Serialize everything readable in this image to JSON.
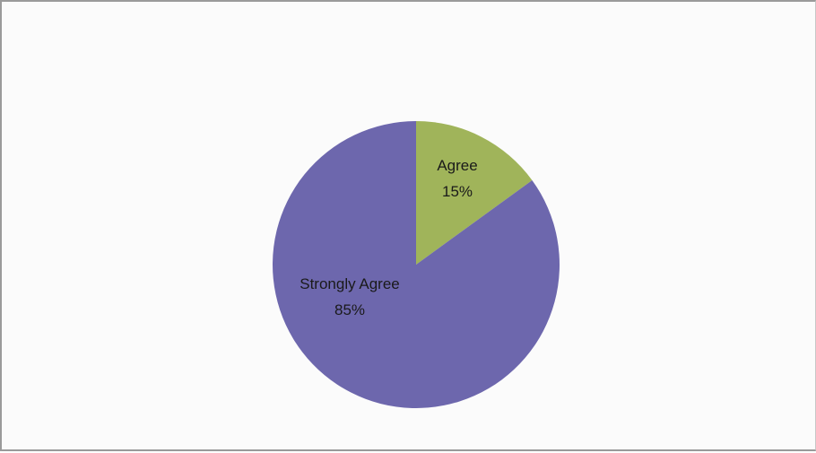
{
  "chart_data": {
    "type": "pie",
    "title": "",
    "slices": [
      {
        "label": "Agree",
        "value": 15,
        "value_label": "15%",
        "color": "#a0b45a"
      },
      {
        "label": "Strongly Agree",
        "value": 85,
        "value_label": "85%",
        "color": "#6d67ad"
      }
    ],
    "start": "12 o'clock",
    "direction": "clockwise",
    "legend": "none",
    "data_labels": "category name and percentage, on slices"
  }
}
